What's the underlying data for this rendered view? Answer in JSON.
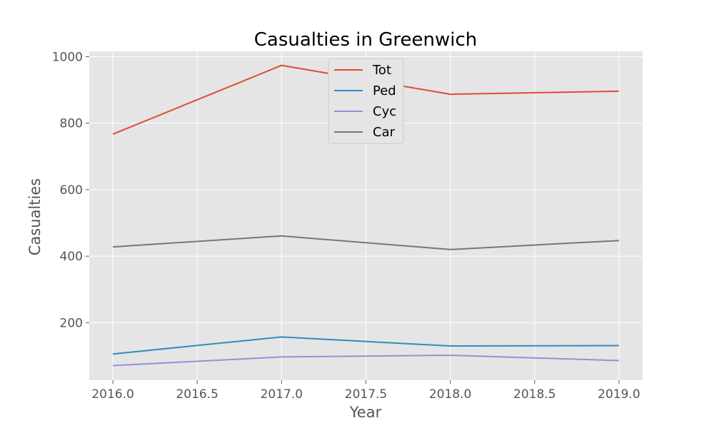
{
  "chart_data": {
    "type": "line",
    "title": "Casualties in Greenwich",
    "xlabel": "Year",
    "ylabel": "Casualties",
    "x": [
      2016,
      2017,
      2018,
      2019
    ],
    "xlim": [
      2015.86,
      2019.14
    ],
    "ylim": [
      27,
      1016
    ],
    "xticks": [
      2016.0,
      2016.5,
      2017.0,
      2017.5,
      2018.0,
      2018.5,
      2019.0
    ],
    "xtick_labels": [
      "2016.0",
      "2016.5",
      "2017.0",
      "2017.5",
      "2018.0",
      "2018.5",
      "2019.0"
    ],
    "yticks": [
      200,
      400,
      600,
      800,
      1000
    ],
    "ytick_labels": [
      "200",
      "400",
      "600",
      "800",
      "1000"
    ],
    "grid": true,
    "legend_position": "top-center",
    "series": [
      {
        "name": "Tot",
        "color": "#e24a33",
        "values": [
          767,
          974,
          887,
          896
        ]
      },
      {
        "name": "Ped",
        "color": "#348abd",
        "values": [
          106,
          157,
          130,
          131
        ]
      },
      {
        "name": "Cyc",
        "color": "#988ed5",
        "values": [
          71,
          97,
          102,
          86
        ]
      },
      {
        "name": "Car",
        "color": "#777777",
        "values": [
          428,
          461,
          420,
          447
        ]
      }
    ]
  }
}
